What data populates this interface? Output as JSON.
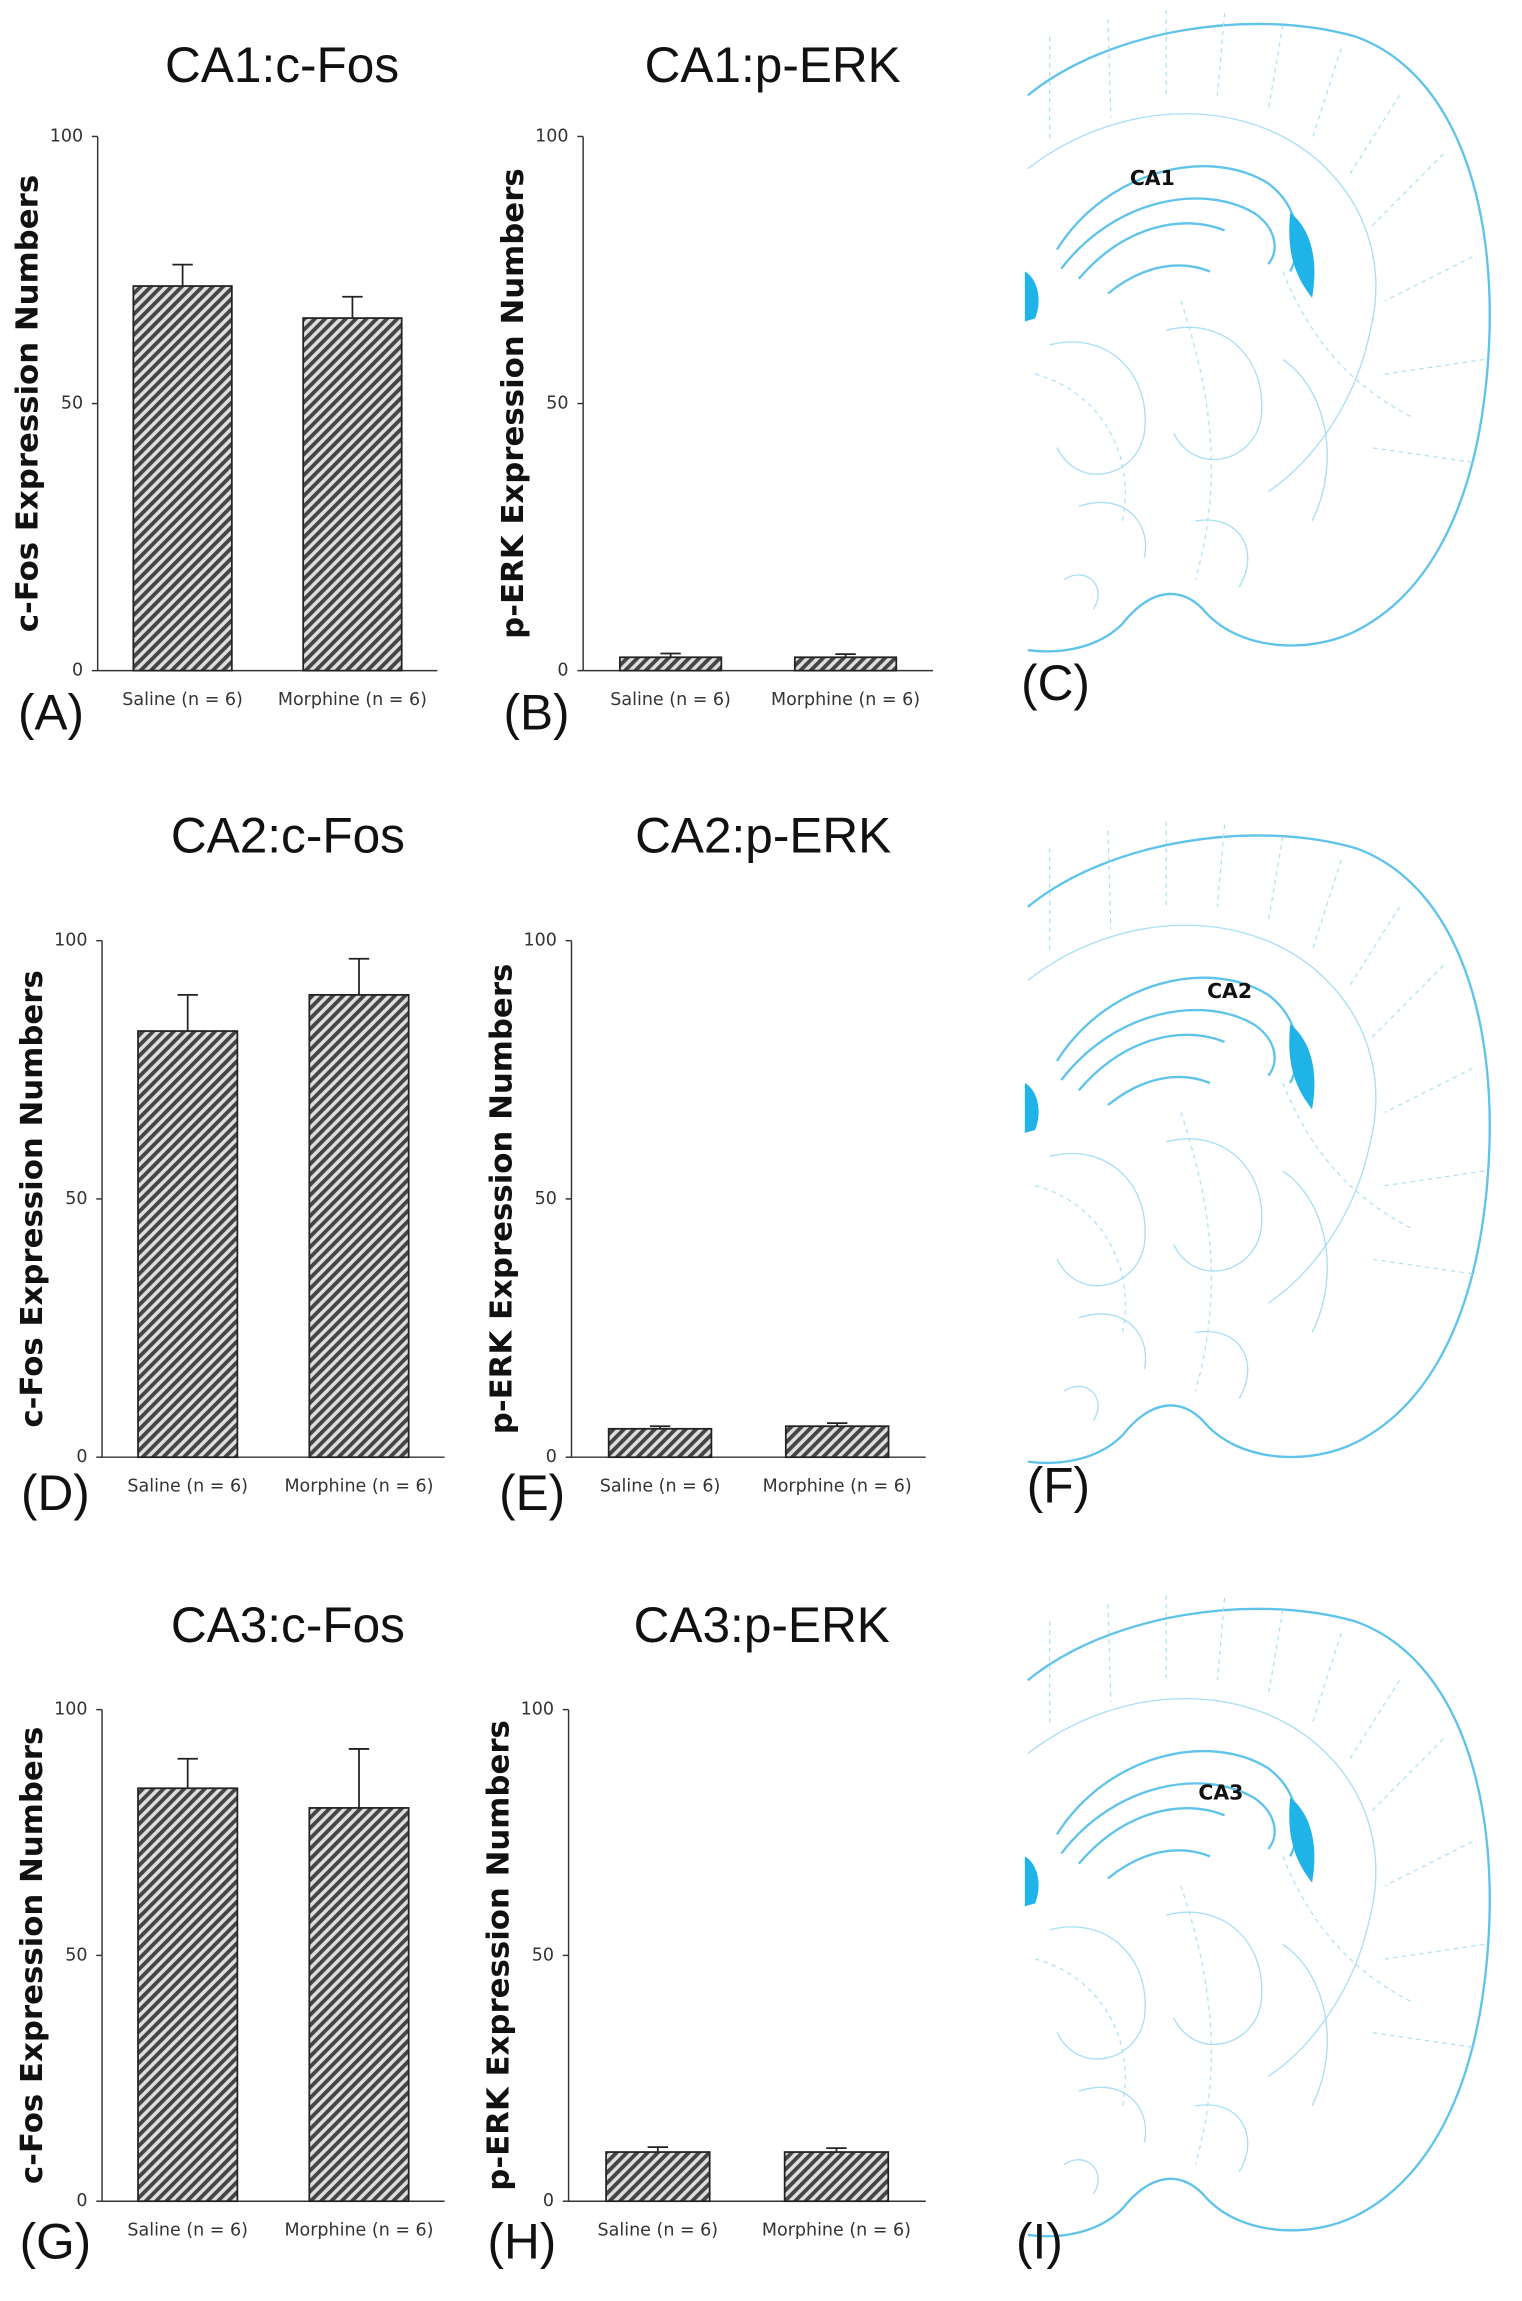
{
  "chart_data": [
    {
      "type": "bar",
      "title": "CA1:c-Fos",
      "ylabel": "c-Fos Expression Numbers",
      "categories": [
        "Saline (n = 6)",
        "Morphine (n = 6)"
      ],
      "values": [
        72,
        66
      ],
      "errors": [
        4,
        4
      ],
      "ylim": [
        0,
        100
      ],
      "yticks": [
        0,
        50,
        100
      ],
      "color": "#7a7a7a"
    },
    {
      "type": "bar",
      "title": "CA1:p-ERK",
      "ylabel": "p-ERK Expression Numbers",
      "categories": [
        "Saline (n = 6)",
        "Morphine (n = 6)"
      ],
      "values": [
        2.5,
        2.5
      ],
      "errors": [
        0.7,
        0.6
      ],
      "ylim": [
        0,
        100
      ],
      "yticks": [
        0,
        50,
        100
      ],
      "color": "#7a7a7a"
    },
    {
      "type": "bar",
      "title": "CA2:c-Fos",
      "ylabel": "c-Fos Expression Numbers",
      "categories": [
        "Saline (n = 6)",
        "Morphine (n = 6)"
      ],
      "values": [
        82.5,
        89.5
      ],
      "errors": [
        7,
        7
      ],
      "ylim": [
        0,
        100
      ],
      "yticks": [
        0,
        50,
        100
      ],
      "color": "#7a7a7a"
    },
    {
      "type": "bar",
      "title": "CA2:p-ERK",
      "ylabel": "p-ERK Expression Numbers",
      "categories": [
        "Saline (n = 6)",
        "Morphine (n = 6)"
      ],
      "values": [
        5.5,
        6
      ],
      "errors": [
        0.5,
        0.6
      ],
      "ylim": [
        0,
        100
      ],
      "yticks": [
        0,
        50,
        100
      ],
      "color": "#7a7a7a"
    },
    {
      "type": "bar",
      "title": "CA3:c-Fos",
      "ylabel": "c-Fos Expression Numbers",
      "categories": [
        "Saline (n = 6)",
        "Morphine (n = 6)"
      ],
      "values": [
        84,
        80
      ],
      "errors": [
        6,
        12
      ],
      "ylim": [
        0,
        100
      ],
      "yticks": [
        0,
        50,
        100
      ],
      "color": "#7a7a7a"
    },
    {
      "type": "bar",
      "title": "CA3:p-ERK",
      "ylabel": "p-ERK Expression Numbers",
      "categories": [
        "Saline (n = 6)",
        "Morphine (n = 6)"
      ],
      "values": [
        10,
        10
      ],
      "errors": [
        1,
        0.8
      ],
      "ylim": [
        0,
        100
      ],
      "yticks": [
        0,
        50,
        100
      ],
      "color": "#7a7a7a"
    }
  ],
  "panel_labels": [
    "(A)",
    "(B)",
    "(C)",
    "(D)",
    "(E)",
    "(F)",
    "(G)",
    "(H)",
    "(I)"
  ],
  "diagram_labels": [
    "CA1",
    "CA2",
    "CA3"
  ]
}
